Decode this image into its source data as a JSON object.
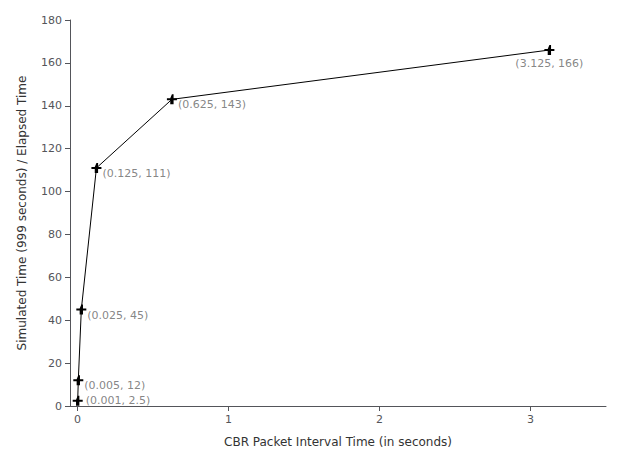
{
  "chart_data": {
    "type": "line",
    "x": [
      0.001,
      0.005,
      0.025,
      0.125,
      0.625,
      3.125
    ],
    "values": [
      2.5,
      12,
      45,
      111,
      143,
      166
    ],
    "color": "#000000",
    "marker": "plus",
    "xlabel": "CBR Packet Interval Time (in seconds)",
    "ylabel": "Simulated Time (999 seconds) / Elapsed Time",
    "xlim": [
      -0.05,
      3.5
    ],
    "xticks": [
      0,
      1,
      2,
      3
    ],
    "ylim": [
      0,
      180
    ],
    "yticks": [
      0,
      20,
      40,
      60,
      80,
      100,
      120,
      140,
      160,
      180
    ],
    "grid": false,
    "annotations": [
      {
        "x": 0.001,
        "y": 2.5,
        "label": "(0.001, 2.5)"
      },
      {
        "x": 0.005,
        "y": 12,
        "label": "(0.005, 12)"
      },
      {
        "x": 0.025,
        "y": 45,
        "label": "(0.025, 45)"
      },
      {
        "x": 0.125,
        "y": 111,
        "label": "(0.125, 111)"
      },
      {
        "x": 0.625,
        "y": 143,
        "label": "(0.625, 143)"
      },
      {
        "x": 3.125,
        "y": 166,
        "label": "(3.125, 166)"
      }
    ]
  }
}
